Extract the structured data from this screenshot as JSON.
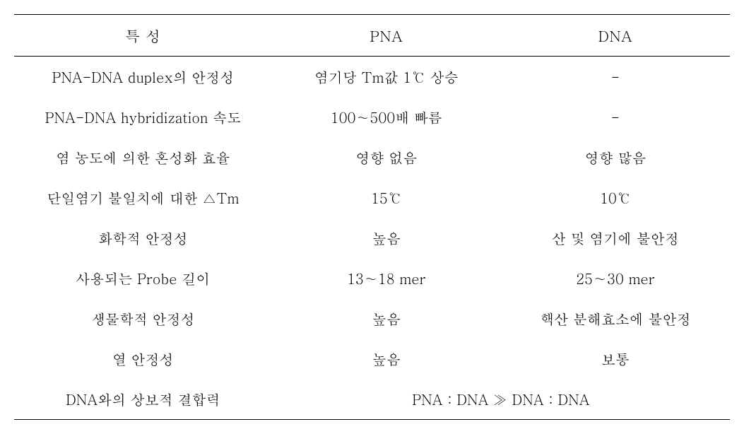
{
  "table": {
    "headers": {
      "property": "특  성",
      "pna": "PNA",
      "dna": "DNA"
    },
    "rows": [
      {
        "property": "PNA-DNA duplex의 안정성",
        "pna": "염기당 Tm값 1℃ 상승",
        "dna": "-"
      },
      {
        "property": "PNA-DNA hybridization 속도",
        "pna": "100∼500배 빠름",
        "dna": "-"
      },
      {
        "property": "염 농도에 의한 혼성화 효율",
        "pna": "영향 없음",
        "dna": "영향 많음"
      },
      {
        "property": "단일염기 불일치에 대한 △Tm",
        "pna": "15℃",
        "dna": "10℃"
      },
      {
        "property": "화학적 안정성",
        "pna": "높음",
        "dna": "산 및 염기에 불안정"
      },
      {
        "property": "사용되는 Probe 길이",
        "pna": "13∼18 mer",
        "dna": "25∼30 mer"
      },
      {
        "property": "생물학적 안정성",
        "pna": "높음",
        "dna": "핵산 분해효소에 불안정"
      },
      {
        "property": "열 안정성",
        "pna": "높음",
        "dna": "보통"
      },
      {
        "property": "DNA와의 상보적 결합력",
        "merged": "PNA : DNA ≫ DNA : DNA"
      }
    ],
    "styling": {
      "background_color": "#ffffff",
      "border_color": "#000000",
      "border_top_width": 1.5,
      "border_bottom_width": 1.5,
      "header_border_bottom_width": 1,
      "header_fontsize": 21,
      "body_fontsize": 20,
      "text_color": "#000000",
      "font_family": "Batang, Times New Roman, serif",
      "row_padding_vertical": 14,
      "row_padding_horizontal": 8,
      "col_widths": {
        "property": "36%",
        "pna": "32%",
        "dna": "32%"
      }
    }
  }
}
